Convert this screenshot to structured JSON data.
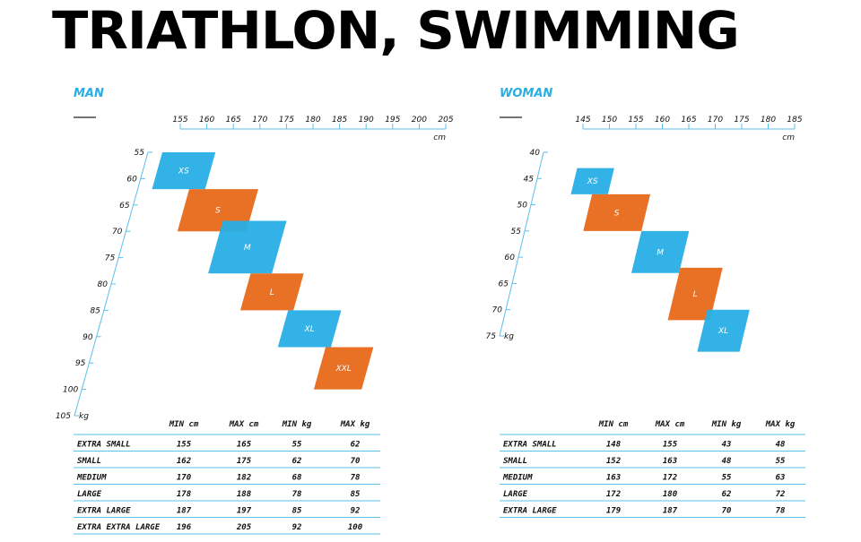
{
  "page": {
    "title": "TRIATHLON, SWIMMING"
  },
  "colors": {
    "blue": "#27aee6",
    "orange": "#e8691a",
    "axis": "#5bc0ea"
  },
  "chart_data": [
    {
      "type": "heatmap",
      "label": "MAN",
      "xunit": "cm",
      "yunit": "kg",
      "xticks": [
        155,
        160,
        165,
        170,
        175,
        180,
        185,
        190,
        195,
        200,
        205
      ],
      "yticks": [
        55,
        60,
        65,
        70,
        75,
        80,
        85,
        90,
        95,
        100,
        105
      ],
      "sizes": [
        {
          "label": "XS",
          "color": "blue",
          "min_cm": 155,
          "max_cm": 165,
          "min_kg": 55,
          "max_kg": 62
        },
        {
          "label": "S",
          "color": "orange",
          "min_cm": 162,
          "max_cm": 175,
          "min_kg": 62,
          "max_kg": 70
        },
        {
          "label": "M",
          "color": "blue",
          "min_cm": 170,
          "max_cm": 182,
          "min_kg": 68,
          "max_kg": 78
        },
        {
          "label": "L",
          "color": "orange",
          "min_cm": 178,
          "max_cm": 188,
          "min_kg": 78,
          "max_kg": 85
        },
        {
          "label": "XL",
          "color": "blue",
          "min_cm": 187,
          "max_cm": 197,
          "min_kg": 85,
          "max_kg": 92
        },
        {
          "label": "XXL",
          "color": "orange",
          "min_cm": 196,
          "max_cm": 205,
          "min_kg": 92,
          "max_kg": 100
        }
      ],
      "table": {
        "headers": [
          "MIN cm",
          "MAX cm",
          "MIN kg",
          "MAX kg"
        ],
        "rows": [
          [
            "EXTRA SMALL",
            "155",
            "165",
            "55",
            "62"
          ],
          [
            "SMALL",
            "162",
            "175",
            "62",
            "70"
          ],
          [
            "MEDIUM",
            "170",
            "182",
            "68",
            "78"
          ],
          [
            "LARGE",
            "178",
            "188",
            "78",
            "85"
          ],
          [
            "EXTRA LARGE",
            "187",
            "197",
            "85",
            "92"
          ],
          [
            "EXTRA EXTRA LARGE",
            "196",
            "205",
            "92",
            "100"
          ]
        ]
      }
    },
    {
      "type": "heatmap",
      "label": "WOMAN",
      "xunit": "cm",
      "yunit": "kg",
      "xticks": [
        145,
        150,
        155,
        160,
        165,
        170,
        175,
        180,
        185
      ],
      "yticks": [
        40,
        45,
        50,
        55,
        60,
        65,
        70,
        75
      ],
      "sizes": [
        {
          "label": "XS",
          "color": "blue",
          "min_cm": 148,
          "max_cm": 155,
          "min_kg": 43,
          "max_kg": 48
        },
        {
          "label": "S",
          "color": "orange",
          "min_cm": 152,
          "max_cm": 163,
          "min_kg": 48,
          "max_kg": 55
        },
        {
          "label": "M",
          "color": "blue",
          "min_cm": 163,
          "max_cm": 172,
          "min_kg": 55,
          "max_kg": 63
        },
        {
          "label": "L",
          "color": "orange",
          "min_cm": 172,
          "max_cm": 180,
          "min_kg": 62,
          "max_kg": 72
        },
        {
          "label": "XL",
          "color": "blue",
          "min_cm": 179,
          "max_cm": 187,
          "min_kg": 70,
          "max_kg": 78
        }
      ],
      "table": {
        "headers": [
          "MIN cm",
          "MAX cm",
          "MIN kg",
          "MAX kg"
        ],
        "rows": [
          [
            "EXTRA SMALL",
            "148",
            "155",
            "43",
            "48"
          ],
          [
            "SMALL",
            "152",
            "163",
            "48",
            "55"
          ],
          [
            "MEDIUM",
            "163",
            "172",
            "55",
            "63"
          ],
          [
            "LARGE",
            "172",
            "180",
            "62",
            "72"
          ],
          [
            "EXTRA LARGE",
            "179",
            "187",
            "70",
            "78"
          ]
        ]
      }
    }
  ]
}
